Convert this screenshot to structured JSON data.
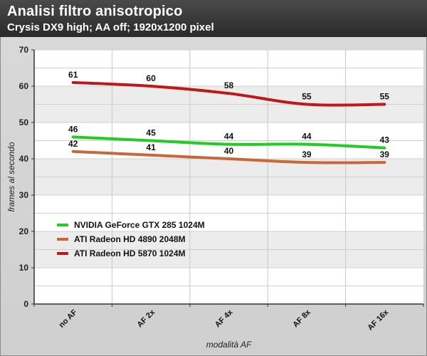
{
  "header": {
    "title": "Analisi filtro anisotropico",
    "subtitle": "Crysis DX9 high; AA off; 1920x1200 pixel"
  },
  "chart_data": {
    "type": "line",
    "title": "Analisi filtro anisotropico",
    "subtitle": "Crysis DX9 high; AA off; 1920x1200 pixel",
    "xlabel": "modalità AF",
    "ylabel": "frames al secondo",
    "categories": [
      "no AF",
      "AF 2x",
      "AF 4x",
      "AF 8x",
      "AF 16x"
    ],
    "ylim": [
      0,
      70
    ],
    "yticks": [
      0,
      10,
      20,
      30,
      40,
      50,
      60,
      70
    ],
    "grid": true,
    "legend_position": "bottom-left",
    "series": [
      {
        "name": "NVIDIA GeForce GTX 285 1024M",
        "color": "#22cc22",
        "values": [
          46,
          45,
          44,
          44,
          43
        ]
      },
      {
        "name": "ATI Radeon HD 4890 2048M",
        "color": "#c8683a",
        "values": [
          42,
          41,
          40,
          39,
          39
        ]
      },
      {
        "name": "ATI Radeon HD 5870 1024M",
        "color": "#c01818",
        "values": [
          61,
          60,
          58,
          55,
          55
        ]
      }
    ]
  }
}
